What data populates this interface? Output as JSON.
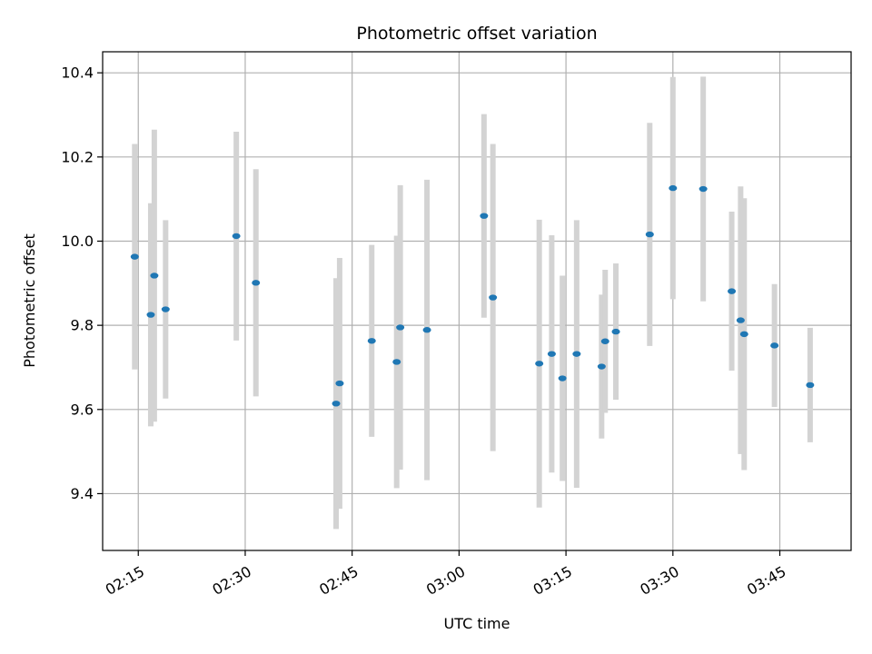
{
  "chart_data": {
    "type": "scatter",
    "title": "Photometric offset variation",
    "xlabel": "UTC time",
    "ylabel": "Photometric offset",
    "grid": true,
    "xlim": [
      "02:10",
      "03:55"
    ],
    "ylim": [
      9.265,
      10.45
    ],
    "x_ticks": [
      "02:15",
      "02:30",
      "02:45",
      "03:00",
      "03:15",
      "03:30",
      "03:45"
    ],
    "y_ticks": [
      9.4,
      9.6,
      9.8,
      10.0,
      10.2,
      10.4
    ],
    "y_tick_labels": [
      "9.4",
      "9.6",
      "9.8",
      "10.0",
      "10.2",
      "10.4"
    ],
    "colors": {
      "marker": "#1f77b4",
      "errorbar": "#d3d3d3",
      "grid": "#b0b0b0",
      "axes": "#000000"
    },
    "series": [
      {
        "points": [
          {
            "t": "02:14:30",
            "y": 9.963,
            "err": 0.268
          },
          {
            "t": "02:16:45",
            "y": 9.825,
            "err": 0.265
          },
          {
            "t": "02:17:15",
            "y": 9.918,
            "err": 0.347
          },
          {
            "t": "02:18:50",
            "y": 9.838,
            "err": 0.212
          },
          {
            "t": "02:28:45",
            "y": 10.012,
            "err": 0.248
          },
          {
            "t": "02:31:30",
            "y": 9.901,
            "err": 0.27
          },
          {
            "t": "02:42:45",
            "y": 9.614,
            "err": 0.298
          },
          {
            "t": "02:43:15",
            "y": 9.662,
            "err": 0.298
          },
          {
            "t": "02:47:45",
            "y": 9.763,
            "err": 0.228
          },
          {
            "t": "02:51:15",
            "y": 9.713,
            "err": 0.3
          },
          {
            "t": "02:51:45",
            "y": 9.795,
            "err": 0.338
          },
          {
            "t": "02:55:30",
            "y": 9.789,
            "err": 0.357
          },
          {
            "t": "03:03:30",
            "y": 10.06,
            "err": 0.242
          },
          {
            "t": "03:04:45",
            "y": 9.866,
            "err": 0.365
          },
          {
            "t": "03:11:15",
            "y": 9.709,
            "err": 0.342
          },
          {
            "t": "03:13:00",
            "y": 9.732,
            "err": 0.282
          },
          {
            "t": "03:14:30",
            "y": 9.674,
            "err": 0.244
          },
          {
            "t": "03:16:30",
            "y": 9.732,
            "err": 0.318
          },
          {
            "t": "03:20:00",
            "y": 9.702,
            "err": 0.171
          },
          {
            "t": "03:20:30",
            "y": 9.762,
            "err": 0.17
          },
          {
            "t": "03:22:00",
            "y": 9.785,
            "err": 0.162
          },
          {
            "t": "03:26:45",
            "y": 10.016,
            "err": 0.265
          },
          {
            "t": "03:30:00",
            "y": 10.126,
            "err": 0.264
          },
          {
            "t": "03:34:15",
            "y": 10.124,
            "err": 0.267
          },
          {
            "t": "03:38:15",
            "y": 9.881,
            "err": 0.189
          },
          {
            "t": "03:39:30",
            "y": 9.812,
            "err": 0.318
          },
          {
            "t": "03:40:00",
            "y": 9.779,
            "err": 0.323
          },
          {
            "t": "03:44:15",
            "y": 9.752,
            "err": 0.146
          },
          {
            "t": "03:49:15",
            "y": 9.658,
            "err": 0.136
          }
        ]
      }
    ]
  }
}
